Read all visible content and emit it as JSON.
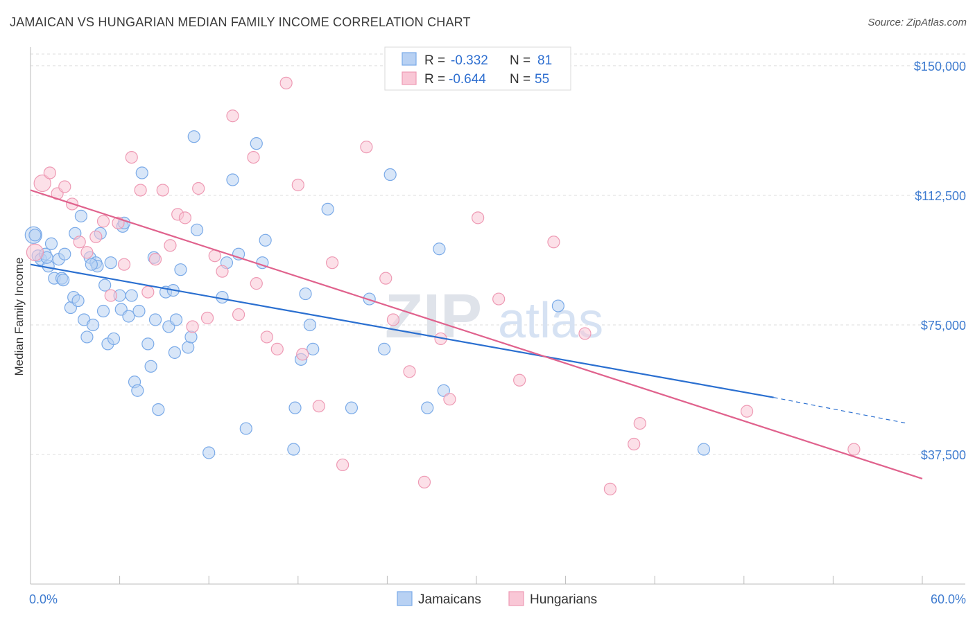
{
  "title": "JAMAICAN VS HUNGARIAN MEDIAN FAMILY INCOME CORRELATION CHART",
  "source": "Source: ZipAtlas.com",
  "watermark": {
    "zip": "ZIP",
    "atlas": "atlas"
  },
  "legend": [
    {
      "r_label": "R =",
      "r_value": "-0.332",
      "n_label": "N =",
      "n_value": "81"
    },
    {
      "r_label": "R =",
      "r_value": "-0.644",
      "n_label": "N =",
      "n_value": "55"
    }
  ],
  "chart_data": {
    "type": "scatter",
    "title": "JAMAICAN VS HUNGARIAN MEDIAN FAMILY INCOME CORRELATION CHART",
    "xlabel": "",
    "ylabel": "Median Family Income",
    "xlim": [
      0,
      60
    ],
    "ylim": [
      0,
      155000
    ],
    "x_tick_labels": [
      "0.0%",
      "60.0%"
    ],
    "y_ticks": [
      37500,
      75000,
      112500,
      150000
    ],
    "y_tick_labels": [
      "$37,500",
      "$75,000",
      "$112,500",
      "$150,000"
    ],
    "grid": true,
    "legend_position": "top-center",
    "series": [
      {
        "name": "Jamaicans",
        "color": "#7aaae8",
        "fill": "#b8d1f3",
        "r": -0.332,
        "n": 81,
        "trend": {
          "x0": 0,
          "y0": 92500,
          "x1": 50,
          "y1": 54000,
          "dash_to_x": 59,
          "dash_to_y": 46500
        },
        "points": [
          [
            0.2,
            101000
          ],
          [
            0.5,
            95000
          ],
          [
            0.7,
            94000
          ],
          [
            1.0,
            95500
          ],
          [
            1.2,
            92000
          ],
          [
            1.4,
            98500
          ],
          [
            1.6,
            88500
          ],
          [
            1.9,
            94000
          ],
          [
            2.1,
            88500
          ],
          [
            2.3,
            95500
          ],
          [
            2.7,
            80000
          ],
          [
            2.9,
            83000
          ],
          [
            3.0,
            101500
          ],
          [
            3.2,
            82000
          ],
          [
            3.4,
            106500
          ],
          [
            3.6,
            76500
          ],
          [
            3.8,
            71500
          ],
          [
            4.0,
            94500
          ],
          [
            4.2,
            75000
          ],
          [
            4.4,
            93000
          ],
          [
            4.5,
            92000
          ],
          [
            4.7,
            101500
          ],
          [
            4.9,
            79000
          ],
          [
            5.0,
            86500
          ],
          [
            5.2,
            69500
          ],
          [
            5.4,
            93000
          ],
          [
            5.6,
            71000
          ],
          [
            6.0,
            83500
          ],
          [
            6.1,
            79500
          ],
          [
            6.2,
            103500
          ],
          [
            6.3,
            104500
          ],
          [
            6.6,
            77500
          ],
          [
            6.8,
            83500
          ],
          [
            7.0,
            58500
          ],
          [
            7.2,
            56000
          ],
          [
            7.3,
            79000
          ],
          [
            7.5,
            119000
          ],
          [
            7.9,
            69500
          ],
          [
            8.1,
            63000
          ],
          [
            8.3,
            94500
          ],
          [
            8.4,
            76500
          ],
          [
            8.6,
            50500
          ],
          [
            9.1,
            84500
          ],
          [
            9.3,
            74500
          ],
          [
            9.6,
            85000
          ],
          [
            9.7,
            67000
          ],
          [
            9.8,
            76500
          ],
          [
            10.1,
            91000
          ],
          [
            10.6,
            68500
          ],
          [
            10.8,
            71500
          ],
          [
            11.0,
            129500
          ],
          [
            11.2,
            102500
          ],
          [
            12.0,
            38000
          ],
          [
            14.5,
            45000
          ],
          [
            12.9,
            83000
          ],
          [
            13.2,
            93000
          ],
          [
            14.0,
            95500
          ],
          [
            13.6,
            117000
          ],
          [
            15.2,
            127500
          ],
          [
            15.6,
            93000
          ],
          [
            15.8,
            99500
          ],
          [
            17.7,
            39000
          ],
          [
            17.8,
            51000
          ],
          [
            18.2,
            65000
          ],
          [
            18.5,
            84000
          ],
          [
            18.8,
            75000
          ],
          [
            19.0,
            68000
          ],
          [
            20.0,
            108500
          ],
          [
            21.6,
            51000
          ],
          [
            22.8,
            82500
          ],
          [
            23.8,
            68000
          ],
          [
            24.2,
            118500
          ],
          [
            26.7,
            51000
          ],
          [
            27.5,
            97000
          ],
          [
            27.8,
            56000
          ],
          [
            35.5,
            80500
          ],
          [
            45.3,
            39000
          ],
          [
            0.3,
            101000
          ],
          [
            2.2,
            88000
          ],
          [
            1.1,
            94500
          ],
          [
            4.1,
            92500
          ]
        ]
      },
      {
        "name": "Hungarians",
        "color": "#ee9ab4",
        "fill": "#f9c7d6",
        "r": -0.644,
        "n": 55,
        "trend": {
          "x0": 0,
          "y0": 114000,
          "x1": 60,
          "y1": 30500
        },
        "points": [
          [
            0.3,
            96000
          ],
          [
            0.8,
            116000
          ],
          [
            1.3,
            119000
          ],
          [
            1.8,
            113000
          ],
          [
            2.3,
            115000
          ],
          [
            2.8,
            110000
          ],
          [
            3.3,
            99000
          ],
          [
            3.8,
            96000
          ],
          [
            4.4,
            100500
          ],
          [
            4.9,
            105000
          ],
          [
            5.4,
            83500
          ],
          [
            5.9,
            104500
          ],
          [
            6.3,
            92500
          ],
          [
            6.8,
            123500
          ],
          [
            7.4,
            114000
          ],
          [
            7.9,
            84500
          ],
          [
            8.4,
            94000
          ],
          [
            8.9,
            114000
          ],
          [
            9.4,
            98000
          ],
          [
            9.9,
            107000
          ],
          [
            10.4,
            106000
          ],
          [
            10.9,
            74500
          ],
          [
            11.3,
            114500
          ],
          [
            11.9,
            77000
          ],
          [
            12.4,
            95000
          ],
          [
            12.9,
            90500
          ],
          [
            13.6,
            135500
          ],
          [
            14.0,
            78000
          ],
          [
            15.0,
            123500
          ],
          [
            15.9,
            71500
          ],
          [
            16.6,
            68000
          ],
          [
            17.2,
            145000
          ],
          [
            18.0,
            115500
          ],
          [
            18.3,
            66500
          ],
          [
            19.4,
            51500
          ],
          [
            20.3,
            93000
          ],
          [
            21.0,
            34500
          ],
          [
            22.6,
            126500
          ],
          [
            23.9,
            88500
          ],
          [
            24.4,
            76500
          ],
          [
            25.5,
            61500
          ],
          [
            26.5,
            29500
          ],
          [
            27.6,
            71000
          ],
          [
            28.2,
            53500
          ],
          [
            30.1,
            106000
          ],
          [
            31.5,
            82500
          ],
          [
            32.9,
            59000
          ],
          [
            35.2,
            99000
          ],
          [
            37.3,
            72500
          ],
          [
            39.0,
            27500
          ],
          [
            40.6,
            40500
          ],
          [
            41.0,
            46500
          ],
          [
            48.2,
            50000
          ],
          [
            55.4,
            39000
          ],
          [
            15.2,
            87000
          ]
        ]
      }
    ]
  },
  "bottom_legend": [
    "Jamaicans",
    "Hungarians"
  ]
}
